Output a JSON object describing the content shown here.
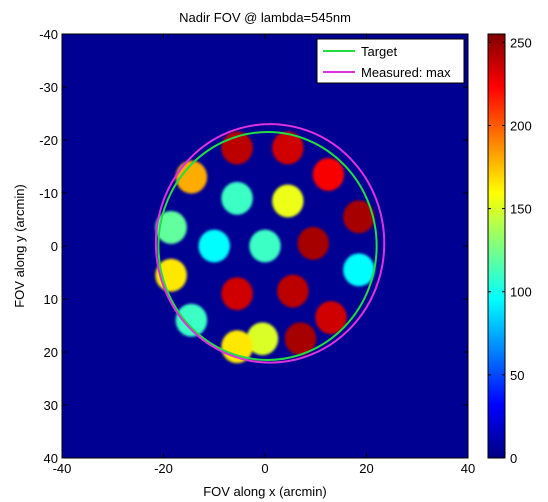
{
  "chart_data": {
    "type": "heatmap",
    "title": "Nadir FOV  @ lambda=545nm",
    "xlabel": "FOV along x (arcmin)",
    "ylabel": "FOV along y (arcmin)",
    "xlim": [
      -40,
      40
    ],
    "ylim": [
      -40,
      40
    ],
    "y_axis_inverted": true,
    "xticks": [
      -40,
      -20,
      0,
      20,
      40
    ],
    "yticks": [
      -40,
      -30,
      -20,
      -10,
      0,
      10,
      20,
      30,
      40
    ],
    "background_value": 5,
    "colorbar": {
      "colormap": "jet",
      "range": [
        0,
        255
      ],
      "ticks": [
        0,
        50,
        100,
        150,
        200,
        250
      ]
    },
    "legend": {
      "placement": "top-right",
      "entries": [
        {
          "label": "Target",
          "color": "#22dd44"
        },
        {
          "label": "Measured: max",
          "color": "#dd33dd"
        }
      ]
    },
    "circles": [
      {
        "name": "Target",
        "center": [
          0.5,
          0
        ],
        "radius": 21.5,
        "color": "#22dd44"
      },
      {
        "name": "Measured: max",
        "center": [
          1,
          -0.5
        ],
        "radius": 22.5,
        "color": "#dd33dd"
      }
    ],
    "spot_radius": 3.1,
    "spots": [
      {
        "x": -5.5,
        "y": -18.5,
        "value": 240
      },
      {
        "x": 4.5,
        "y": -18.5,
        "value": 235
      },
      {
        "x": -14.5,
        "y": -13,
        "value": 180
      },
      {
        "x": -5.5,
        "y": -9,
        "value": 110
      },
      {
        "x": 4.5,
        "y": -8.5,
        "value": 155
      },
      {
        "x": 12.5,
        "y": -13.5,
        "value": 225
      },
      {
        "x": 18.5,
        "y": -5.5,
        "value": 245
      },
      {
        "x": -18.5,
        "y": -3.5,
        "value": 120
      },
      {
        "x": -10,
        "y": 0,
        "value": 95
      },
      {
        "x": 0,
        "y": 0,
        "value": 110
      },
      {
        "x": 9.5,
        "y": -0.5,
        "value": 245
      },
      {
        "x": 18.5,
        "y": 4.5,
        "value": 95
      },
      {
        "x": -18.5,
        "y": 5.5,
        "value": 165
      },
      {
        "x": -5.5,
        "y": 9,
        "value": 235
      },
      {
        "x": 5.5,
        "y": 8.5,
        "value": 240
      },
      {
        "x": -14.5,
        "y": 14,
        "value": 110
      },
      {
        "x": -0.5,
        "y": 17.5,
        "value": 150
      },
      {
        "x": 13,
        "y": 13.5,
        "value": 235
      },
      {
        "x": -5.5,
        "y": 19,
        "value": 165
      },
      {
        "x": 7,
        "y": 17.5,
        "value": 245
      }
    ]
  }
}
